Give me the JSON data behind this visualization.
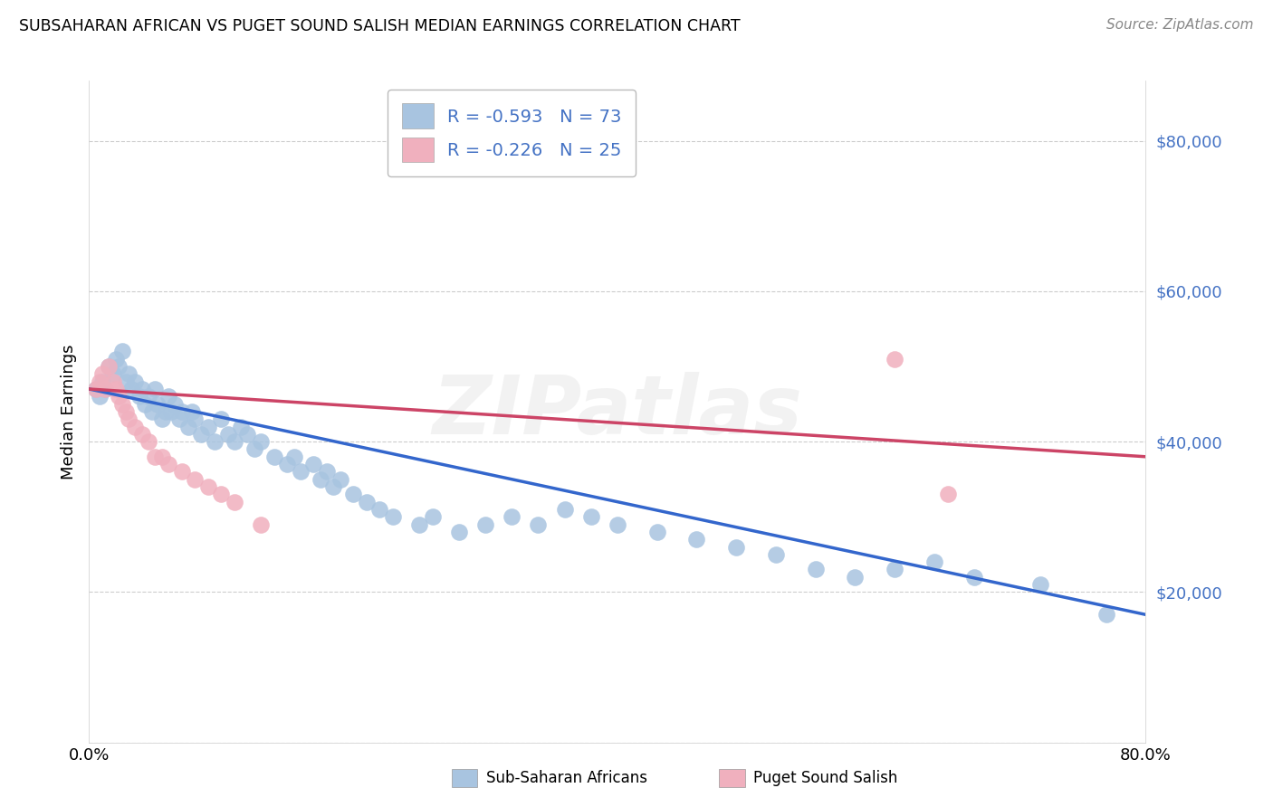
{
  "title": "SUBSAHARAN AFRICAN VS PUGET SOUND SALISH MEDIAN EARNINGS CORRELATION CHART",
  "source": "Source: ZipAtlas.com",
  "ylabel": "Median Earnings",
  "y_ticks": [
    0,
    20000,
    40000,
    60000,
    80000
  ],
  "y_tick_labels": [
    "",
    "$20,000",
    "$40,000",
    "$60,000",
    "$80,000"
  ],
  "x_range": [
    0.0,
    0.8
  ],
  "y_range": [
    0,
    88000
  ],
  "blue_color": "#a8c4e0",
  "pink_color": "#f0b0be",
  "blue_line_color": "#3366cc",
  "pink_line_color": "#cc4466",
  "grid_color": "#cccccc",
  "text_color": "#4472c4",
  "watermark": "ZIPatlas",
  "R_blue": -0.593,
  "N_blue": 73,
  "R_pink": -0.226,
  "N_pink": 25,
  "blue_scatter_x": [
    0.005,
    0.008,
    0.01,
    0.012,
    0.015,
    0.018,
    0.02,
    0.022,
    0.025,
    0.028,
    0.03,
    0.032,
    0.035,
    0.038,
    0.04,
    0.042,
    0.045,
    0.048,
    0.05,
    0.052,
    0.055,
    0.058,
    0.06,
    0.062,
    0.065,
    0.068,
    0.07,
    0.075,
    0.078,
    0.08,
    0.085,
    0.09,
    0.095,
    0.1,
    0.105,
    0.11,
    0.115,
    0.12,
    0.125,
    0.13,
    0.14,
    0.15,
    0.155,
    0.16,
    0.17,
    0.175,
    0.18,
    0.185,
    0.19,
    0.2,
    0.21,
    0.22,
    0.23,
    0.25,
    0.26,
    0.28,
    0.3,
    0.32,
    0.34,
    0.36,
    0.38,
    0.4,
    0.43,
    0.46,
    0.49,
    0.52,
    0.55,
    0.58,
    0.61,
    0.64,
    0.67,
    0.72,
    0.77
  ],
  "blue_scatter_y": [
    47000,
    46000,
    48000,
    47000,
    50000,
    49000,
    51000,
    50000,
    52000,
    48000,
    49000,
    47000,
    48000,
    46000,
    47000,
    45000,
    46000,
    44000,
    47000,
    45000,
    43000,
    44000,
    46000,
    44000,
    45000,
    43000,
    44000,
    42000,
    44000,
    43000,
    41000,
    42000,
    40000,
    43000,
    41000,
    40000,
    42000,
    41000,
    39000,
    40000,
    38000,
    37000,
    38000,
    36000,
    37000,
    35000,
    36000,
    34000,
    35000,
    33000,
    32000,
    31000,
    30000,
    29000,
    30000,
    28000,
    29000,
    30000,
    29000,
    31000,
    30000,
    29000,
    28000,
    27000,
    26000,
    25000,
    23000,
    22000,
    23000,
    24000,
    22000,
    21000,
    17000
  ],
  "pink_scatter_x": [
    0.005,
    0.008,
    0.01,
    0.012,
    0.015,
    0.018,
    0.02,
    0.022,
    0.025,
    0.028,
    0.03,
    0.035,
    0.04,
    0.045,
    0.05,
    0.055,
    0.06,
    0.07,
    0.08,
    0.09,
    0.1,
    0.11,
    0.13,
    0.61,
    0.65
  ],
  "pink_scatter_y": [
    47000,
    48000,
    49000,
    47000,
    50000,
    48000,
    47000,
    46000,
    45000,
    44000,
    43000,
    42000,
    41000,
    40000,
    38000,
    38000,
    37000,
    36000,
    35000,
    34000,
    33000,
    32000,
    29000,
    51000,
    33000
  ]
}
